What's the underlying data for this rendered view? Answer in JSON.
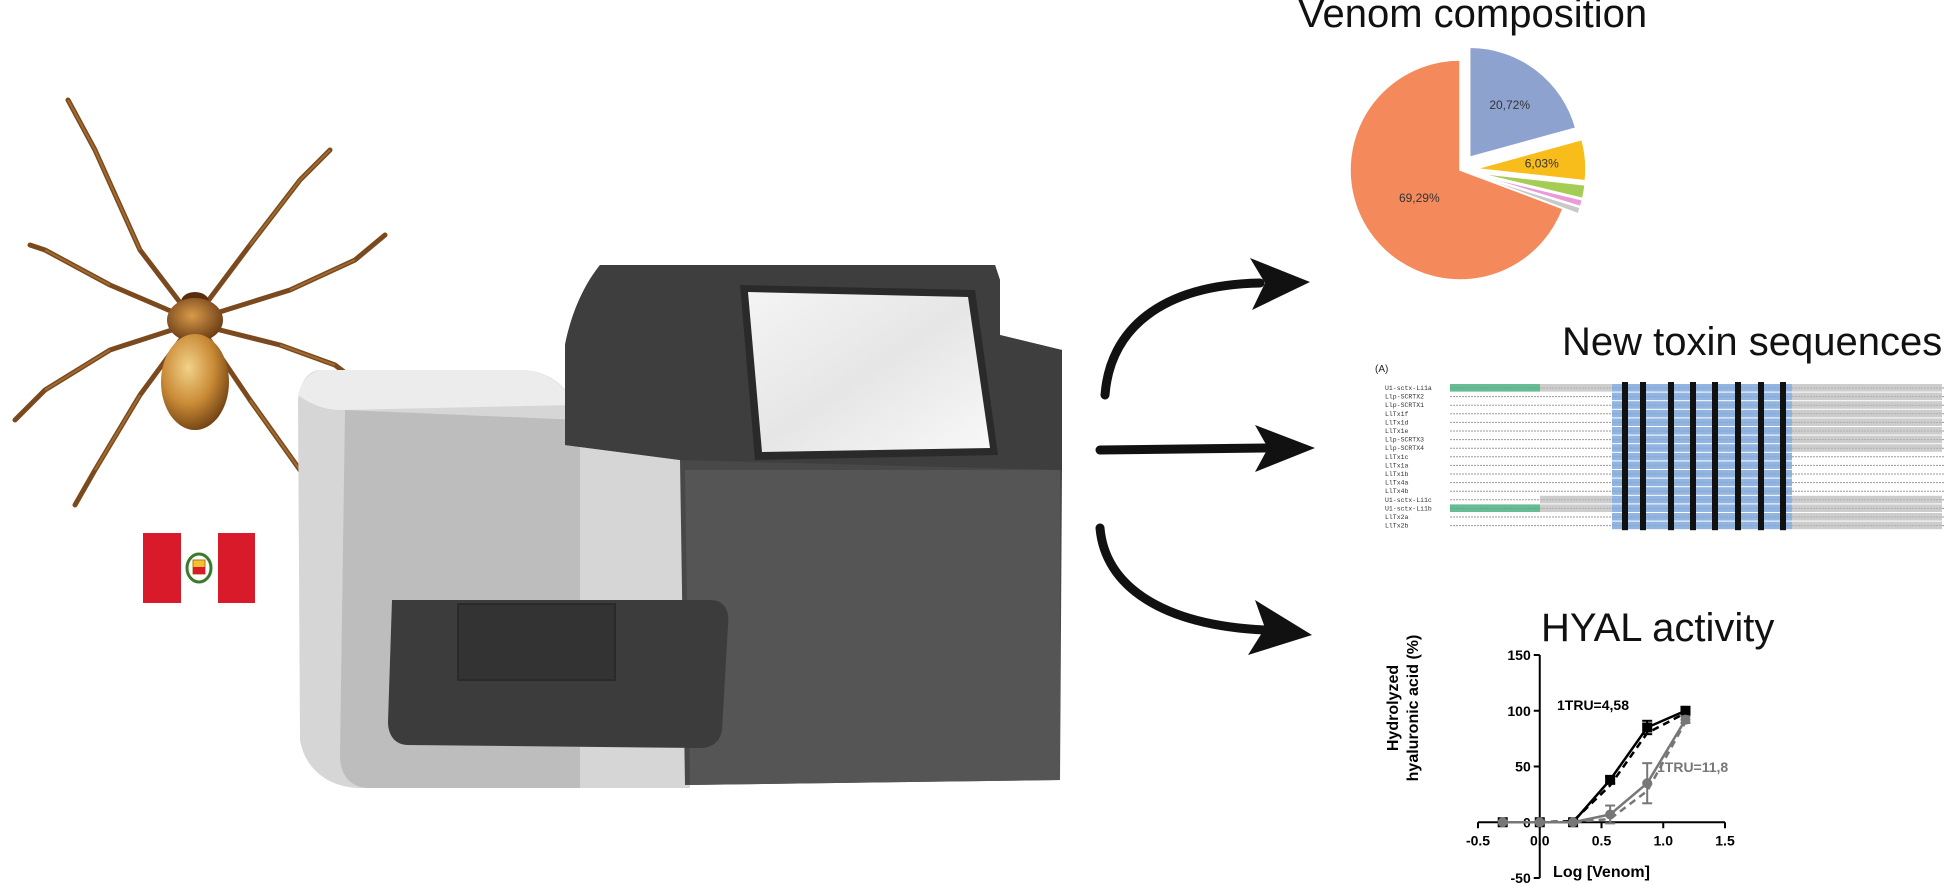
{
  "titles": {
    "venom_composition": "Venom composition",
    "new_toxin_sequences": "New toxin sequences",
    "hyal_activity": "HYAL activity"
  },
  "colors": {
    "flag_red": "#d91a2a",
    "pie_orange": "#f48a5c",
    "pie_blue": "#8ea2d0",
    "pie_yellow": "#f8bd1b",
    "pie_green": "#a5cc54",
    "pie_pink": "#e99ad7",
    "device_light": "#d6d6d6",
    "device_dark": "#484848",
    "seq_blue": "#5b8fd0",
    "seq_green": "#4caf82",
    "curve_black": "#000000",
    "curve_gray": "#777777"
  },
  "alignment": {
    "panel_label": "(A)",
    "names": [
      "U1-sctx-Li1a",
      "Llp-SCRTX2",
      "Llp-SCRTX1",
      "LlTx1f",
      "LlTx1d",
      "LlTx1e",
      "Llp-SCRTX3",
      "Llp-SCRTX4",
      "LlTx1c",
      "LlTx1a",
      "LlTx1b",
      "LlTx4a",
      "LlTx4b",
      "U1-sctx-Li1c",
      "U1-sctx-Li1b",
      "LlTx2a",
      "LlTx2b"
    ]
  },
  "chart_data": [
    {
      "type": "pie",
      "title": "Venom composition",
      "slices": [
        {
          "label": "69,29%",
          "value": 69.29,
          "color": "#f48a5c"
        },
        {
          "label": "20,72%",
          "value": 20.72,
          "color": "#8ea2d0"
        },
        {
          "label": "6,03%",
          "value": 6.03,
          "color": "#f8bd1b"
        },
        {
          "label": "",
          "value": 2.0,
          "color": "#a5cc54"
        },
        {
          "label": "",
          "value": 1.0,
          "color": "#e99ad7"
        },
        {
          "label": "",
          "value": 0.96,
          "color": "#c8c8c8"
        }
      ]
    },
    {
      "type": "line",
      "title": "HYAL activity",
      "xlabel": "Log [Venom]",
      "ylabel": "Hydrolyzed hyaluronic acid (%)",
      "xlim": [
        -0.5,
        1.5
      ],
      "ylim": [
        -50,
        150
      ],
      "xticks": [
        "-0.5",
        "0.0",
        "0.5",
        "1.0",
        "1.5"
      ],
      "yticks": [
        "-50",
        "0",
        "50",
        "100",
        "150"
      ],
      "xtick_values": [
        -0.5,
        0.0,
        0.5,
        1.0,
        1.5
      ],
      "ytick_values": [
        -50,
        0,
        50,
        100,
        150
      ],
      "series": [
        {
          "color": "#000000",
          "dashed": false,
          "x": [
            -0.3,
            0.0,
            0.27,
            0.57,
            0.87,
            1.18
          ],
          "y": [
            0,
            0,
            0,
            38,
            85,
            100
          ],
          "err": [
            0,
            0,
            0,
            3,
            6,
            2
          ]
        },
        {
          "color": "#000000",
          "dashed": true,
          "x": [
            -0.3,
            0.0,
            0.27,
            0.57,
            0.87,
            1.18
          ],
          "y": [
            0,
            0,
            1,
            33,
            80,
            98
          ],
          "err": [
            0,
            0,
            0,
            0,
            0,
            0
          ]
        },
        {
          "color": "#777777",
          "dashed": false,
          "x": [
            -0.3,
            0.0,
            0.27,
            0.57,
            0.87,
            1.18
          ],
          "y": [
            0,
            0,
            0,
            7,
            35,
            92
          ],
          "err": [
            0,
            0,
            0,
            8,
            18,
            3
          ]
        },
        {
          "color": "#777777",
          "dashed": true,
          "x": [
            -0.3,
            0.0,
            0.27,
            0.57,
            0.87,
            1.18
          ],
          "y": [
            0,
            0,
            0,
            3,
            28,
            90
          ],
          "err": [
            0,
            0,
            0,
            0,
            0,
            0
          ]
        }
      ],
      "annotations": [
        {
          "text": "1TRU=4,58",
          "color": "#000000"
        },
        {
          "text": "1TRU=11,8",
          "color": "#777777"
        }
      ]
    }
  ]
}
